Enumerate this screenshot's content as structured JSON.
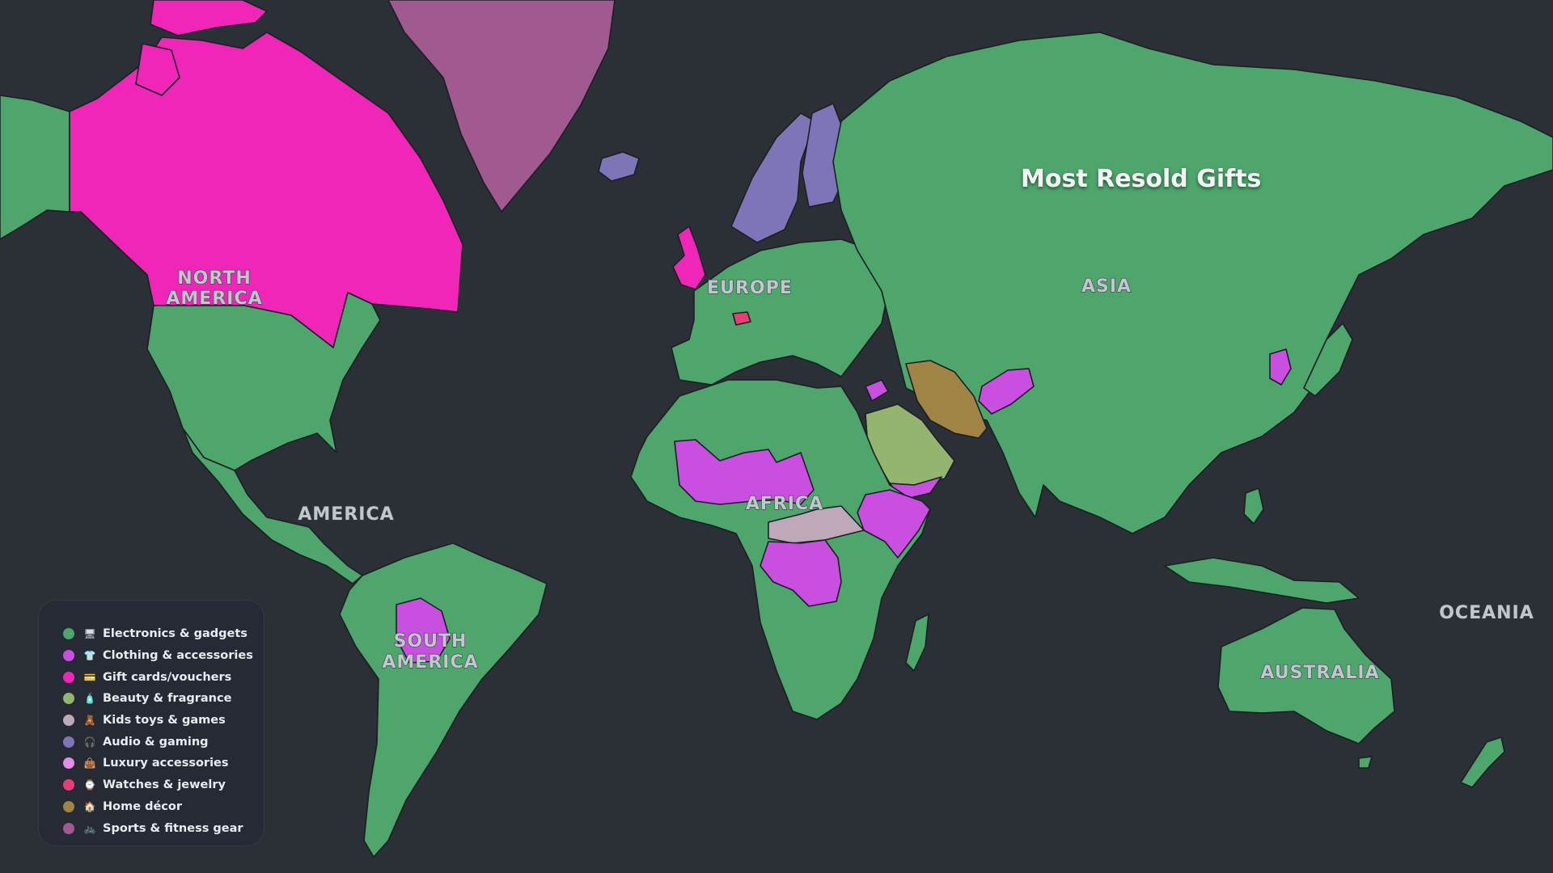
{
  "map": {
    "title": "Most Resold Gifts",
    "background_color": "#2b2f36",
    "region_labels": {
      "north_america": [
        "NORTH",
        "AMERICA"
      ],
      "europe": "EUROPE",
      "asia": "ASIA",
      "america": "AMERICA",
      "africa": "AFRICA",
      "south_america": [
        "SOUTH",
        "AMERICA"
      ],
      "oceania": "OCEANIA",
      "australia": "AUSTRALIA"
    }
  },
  "legend": {
    "items": [
      {
        "label": "Electronics & gadgets",
        "color": "#4ea66c",
        "icon": "🖥"
      },
      {
        "label": "Clothing & accessories",
        "color": "#c84fe0",
        "icon": "👕"
      },
      {
        "label": "Gift cards/vouchers",
        "color": "#f026b8",
        "icon": "💳"
      },
      {
        "label": "Beauty & fragrance",
        "color": "#93b56f",
        "icon": "🧴"
      },
      {
        "label": "Kids toys & games",
        "color": "#bfa8b8",
        "icon": "🧸"
      },
      {
        "label": "Audio & gaming",
        "color": "#7d75b8",
        "icon": "🎧"
      },
      {
        "label": "Luxury accessories",
        "color": "#e48ce8",
        "icon": "👜"
      },
      {
        "label": "Watches & jewelry",
        "color": "#e83e76",
        "icon": "⌚"
      },
      {
        "label": "Home décor",
        "color": "#a08446",
        "icon": "🏠"
      },
      {
        "label": "Sports & fitness gear",
        "color": "#a05a8f",
        "icon": "🚲"
      }
    ]
  }
}
